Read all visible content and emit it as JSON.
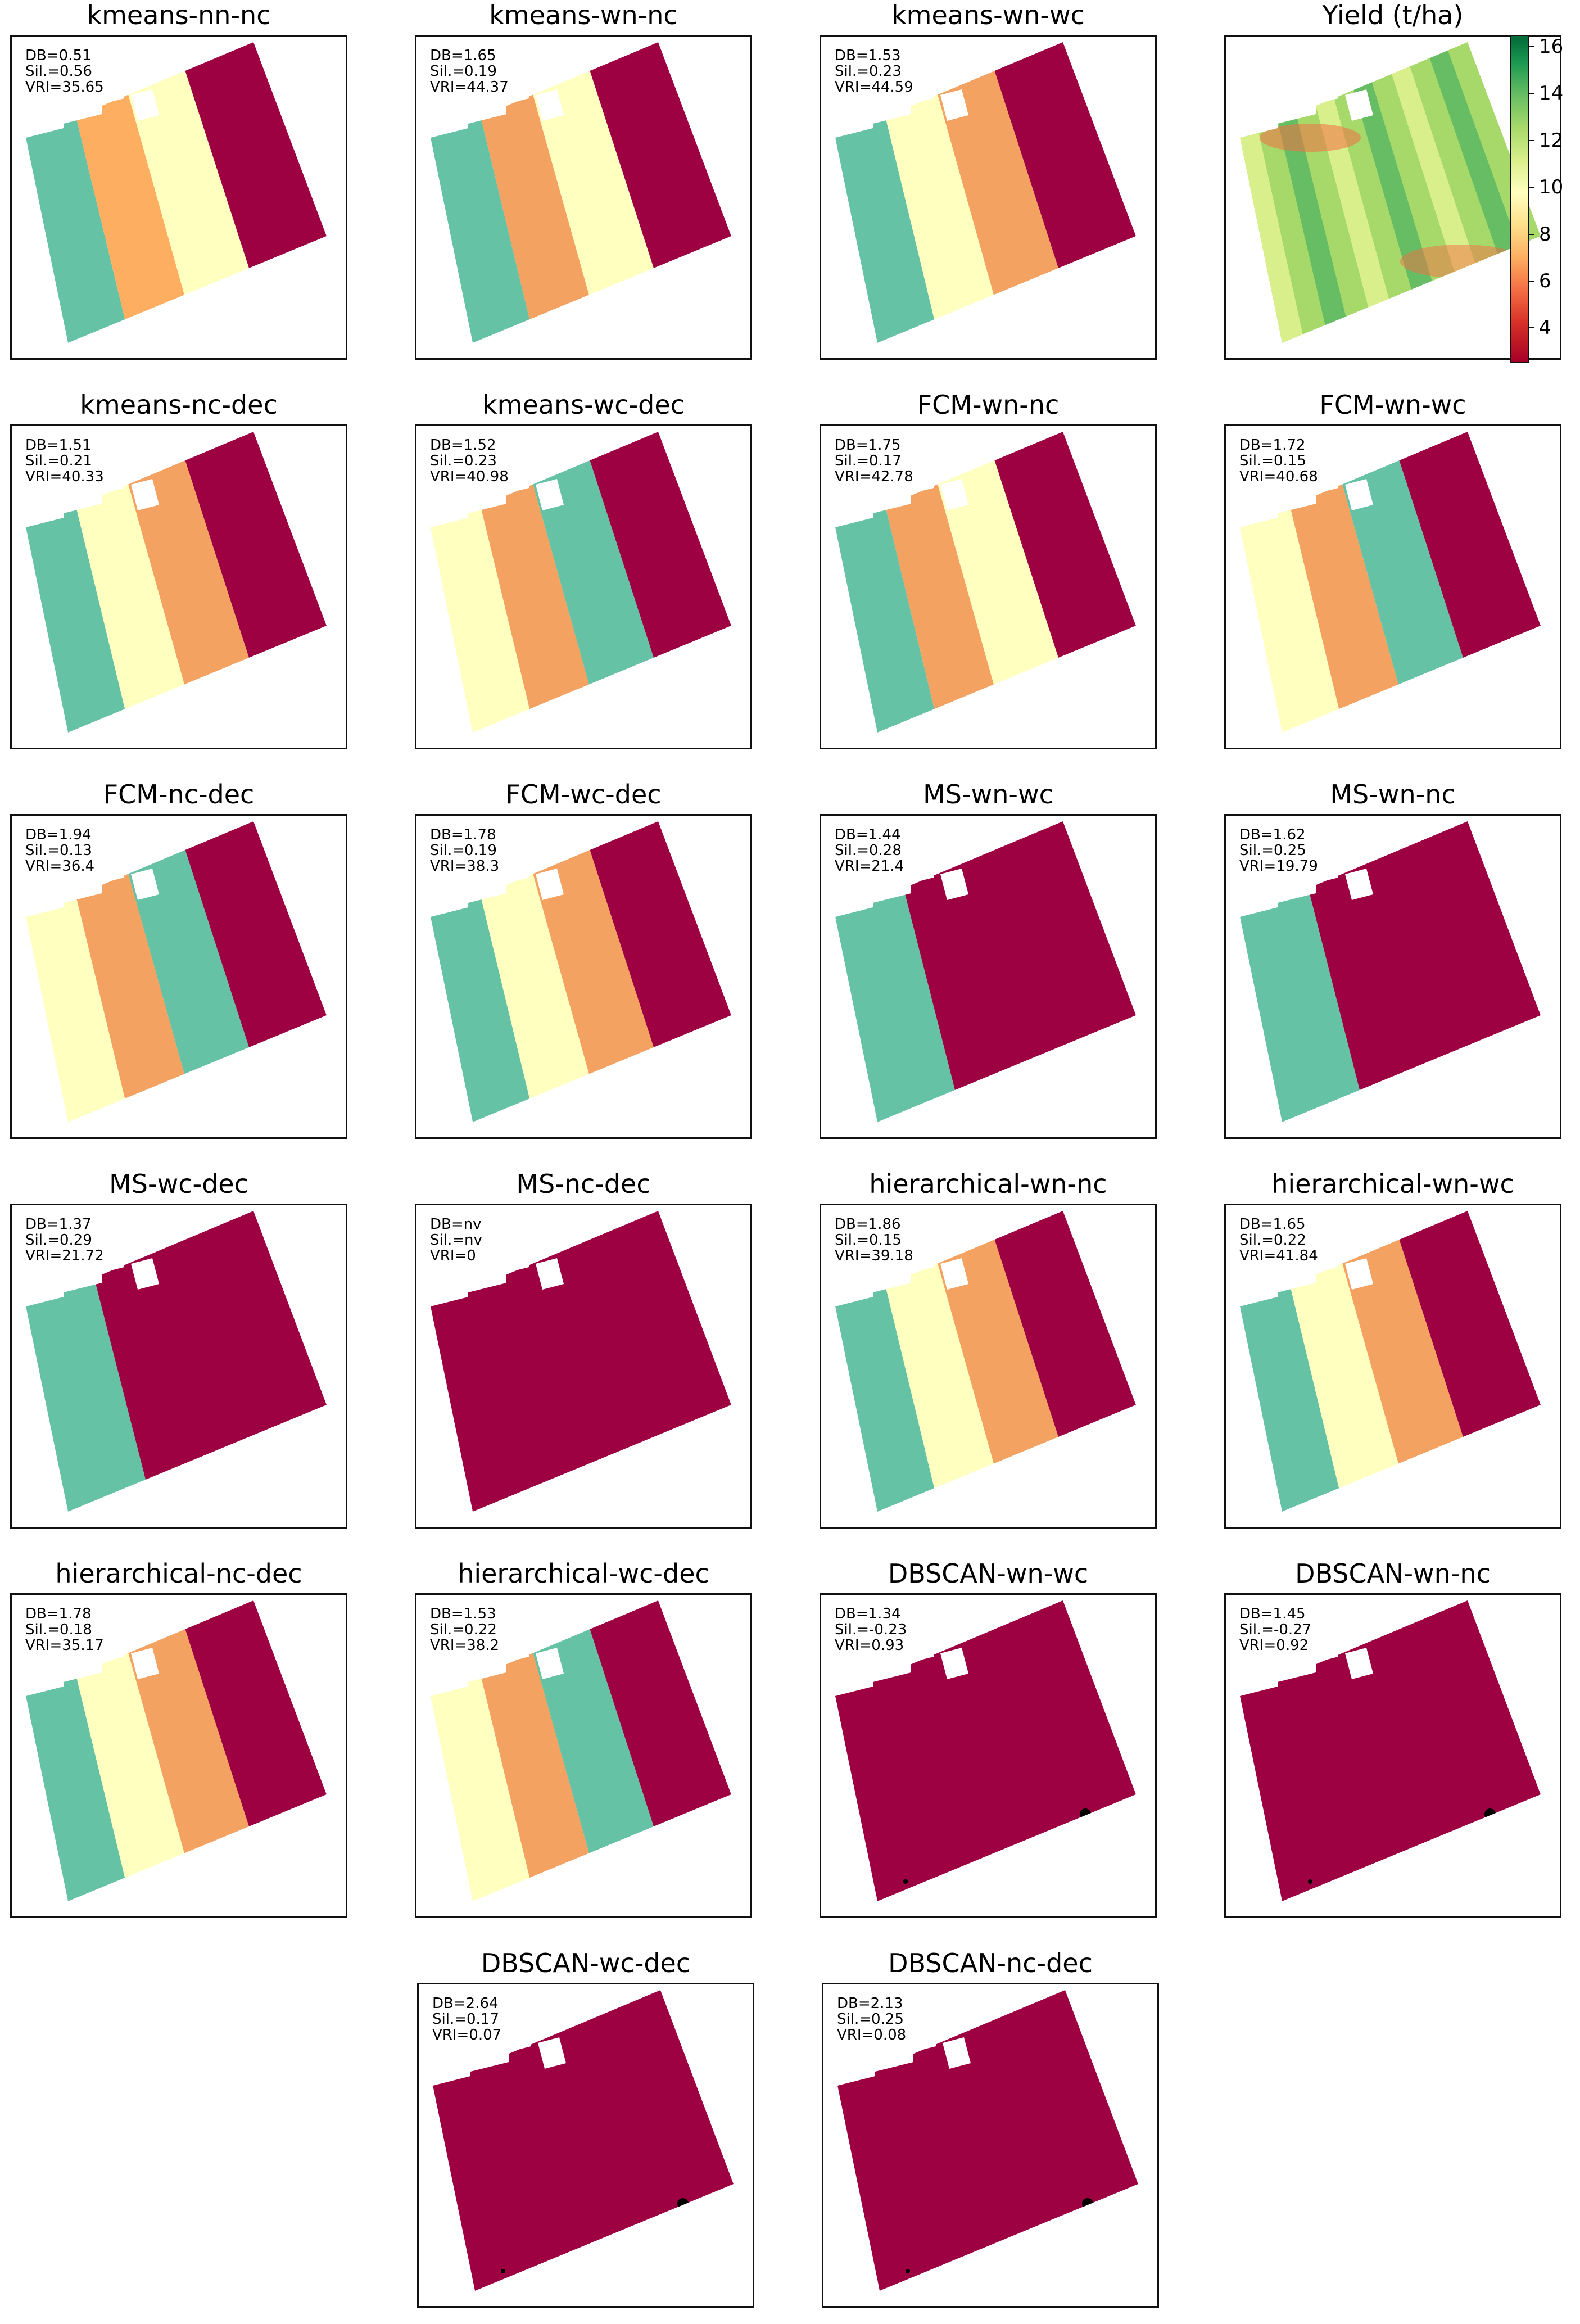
{
  "chart_data": [
    {
      "type": "heatmap",
      "title": "kmeans-nn-nc",
      "metrics": {
        "db": "DB=0.51",
        "sil": "Sil.=0.56",
        "vri": "VRI=35.65"
      },
      "zone_colors": [
        "#66c2a5",
        "#fdae61",
        "#ffffbf",
        "#9e0142"
      ]
    },
    {
      "type": "heatmap",
      "title": "kmeans-wn-nc",
      "metrics": {
        "db": "DB=1.65",
        "sil": "Sil.=0.19",
        "vri": "VRI=44.37"
      },
      "zone_colors": [
        "#66c2a5",
        "#f4a261",
        "#ffffbf",
        "#9e0142"
      ]
    },
    {
      "type": "heatmap",
      "title": "kmeans-wn-wc",
      "metrics": {
        "db": "DB=1.53",
        "sil": "Sil.=0.23",
        "vri": "VRI=44.59"
      },
      "zone_colors": [
        "#66c2a5",
        "#ffffbf",
        "#f4a261",
        "#9e0142"
      ]
    },
    {
      "type": "heatmap",
      "title": "Yield (t/ha)",
      "colorbar": {
        "ticks": [
          "16",
          "14",
          "12",
          "10",
          "8",
          "6",
          "4"
        ],
        "range": [
          2.5,
          16.5
        ],
        "cmap": "RdYlGn"
      },
      "zone_colors": [
        "#a6d96a",
        "#d9ef8b",
        "#66bd63",
        "#f46d43"
      ]
    },
    {
      "type": "heatmap",
      "title": "kmeans-nc-dec",
      "metrics": {
        "db": "DB=1.51",
        "sil": "Sil.=0.21",
        "vri": "VRI=40.33"
      },
      "zone_colors": [
        "#66c2a5",
        "#ffffbf",
        "#f4a261",
        "#9e0142"
      ]
    },
    {
      "type": "heatmap",
      "title": "kmeans-wc-dec",
      "metrics": {
        "db": "DB=1.52",
        "sil": "Sil.=0.23",
        "vri": "VRI=40.98"
      },
      "zone_colors": [
        "#ffffbf",
        "#f4a261",
        "#66c2a5",
        "#9e0142"
      ]
    },
    {
      "type": "heatmap",
      "title": "FCM-wn-nc",
      "metrics": {
        "db": "DB=1.75",
        "sil": "Sil.=0.17",
        "vri": "VRI=42.78"
      },
      "zone_colors": [
        "#66c2a5",
        "#f4a261",
        "#ffffbf",
        "#9e0142"
      ]
    },
    {
      "type": "heatmap",
      "title": "FCM-wn-wc",
      "metrics": {
        "db": "DB=1.72",
        "sil": "Sil.=0.15",
        "vri": "VRI=40.68"
      },
      "zone_colors": [
        "#ffffbf",
        "#f4a261",
        "#66c2a5",
        "#9e0142"
      ]
    },
    {
      "type": "heatmap",
      "title": "FCM-nc-dec",
      "metrics": {
        "db": "DB=1.94",
        "sil": "Sil.=0.13",
        "vri": "VRI=36.4"
      },
      "zone_colors": [
        "#ffffbf",
        "#f4a261",
        "#66c2a5",
        "#9e0142"
      ]
    },
    {
      "type": "heatmap",
      "title": "FCM-wc-dec",
      "metrics": {
        "db": "DB=1.78",
        "sil": "Sil.=0.19",
        "vri": "VRI=38.3"
      },
      "zone_colors": [
        "#66c2a5",
        "#ffffbf",
        "#f4a261",
        "#9e0142"
      ]
    },
    {
      "type": "heatmap",
      "title": "MS-wn-wc",
      "metrics": {
        "db": "DB=1.44",
        "sil": "Sil.=0.28",
        "vri": "VRI=21.4"
      },
      "zone_colors": [
        "#66c2a5",
        "#9e0142"
      ]
    },
    {
      "type": "heatmap",
      "title": "MS-wn-nc",
      "metrics": {
        "db": "DB=1.62",
        "sil": "Sil.=0.25",
        "vri": "VRI=19.79"
      },
      "zone_colors": [
        "#66c2a5",
        "#9e0142"
      ]
    },
    {
      "type": "heatmap",
      "title": "MS-wc-dec",
      "metrics": {
        "db": "DB=1.37",
        "sil": "Sil.=0.29",
        "vri": "VRI=21.72"
      },
      "zone_colors": [
        "#66c2a5",
        "#9e0142"
      ]
    },
    {
      "type": "heatmap",
      "title": "MS-nc-dec",
      "metrics": {
        "db": "DB=nv",
        "sil": "Sil.=nv",
        "vri": "VRI=0"
      },
      "zone_colors": [
        "#9e0142"
      ]
    },
    {
      "type": "heatmap",
      "title": "hierarchical-wn-nc",
      "metrics": {
        "db": "DB=1.86",
        "sil": "Sil.=0.15",
        "vri": "VRI=39.18"
      },
      "zone_colors": [
        "#66c2a5",
        "#ffffbf",
        "#f4a261",
        "#9e0142"
      ]
    },
    {
      "type": "heatmap",
      "title": "hierarchical-wn-wc",
      "metrics": {
        "db": "DB=1.65",
        "sil": "Sil.=0.22",
        "vri": "VRI=41.84"
      },
      "zone_colors": [
        "#66c2a5",
        "#ffffbf",
        "#f4a261",
        "#9e0142"
      ]
    },
    {
      "type": "heatmap",
      "title": "hierarchical-nc-dec",
      "metrics": {
        "db": "DB=1.78",
        "sil": "Sil.=0.18",
        "vri": "VRI=35.17"
      },
      "zone_colors": [
        "#66c2a5",
        "#ffffbf",
        "#f4a261",
        "#9e0142"
      ]
    },
    {
      "type": "heatmap",
      "title": "hierarchical-wc-dec",
      "metrics": {
        "db": "DB=1.53",
        "sil": "Sil.=0.22",
        "vri": "VRI=38.2"
      },
      "zone_colors": [
        "#ffffbf",
        "#f4a261",
        "#66c2a5",
        "#9e0142"
      ]
    },
    {
      "type": "heatmap",
      "title": "DBSCAN-wn-wc",
      "metrics": {
        "db": "DB=1.34",
        "sil": "Sil.=-0.23",
        "vri": "VRI=0.93"
      },
      "zone_colors": [
        "#9e0142",
        "#000000"
      ]
    },
    {
      "type": "heatmap",
      "title": "DBSCAN-wn-nc",
      "metrics": {
        "db": "DB=1.45",
        "sil": "Sil.=-0.27",
        "vri": "VRI=0.92"
      },
      "zone_colors": [
        "#9e0142",
        "#000000"
      ]
    },
    {
      "type": "heatmap",
      "title": "DBSCAN-wc-dec",
      "metrics": {
        "db": "DB=2.64",
        "sil": "Sil.=0.17",
        "vri": "VRI=0.07"
      },
      "zone_colors": [
        "#9e0142",
        "#000000"
      ]
    },
    {
      "type": "heatmap",
      "title": "DBSCAN-nc-dec",
      "metrics": {
        "db": "DB=2.13",
        "sil": "Sil.=0.25",
        "vri": "VRI=0.08"
      },
      "zone_colors": [
        "#9e0142",
        "#000000"
      ]
    }
  ]
}
